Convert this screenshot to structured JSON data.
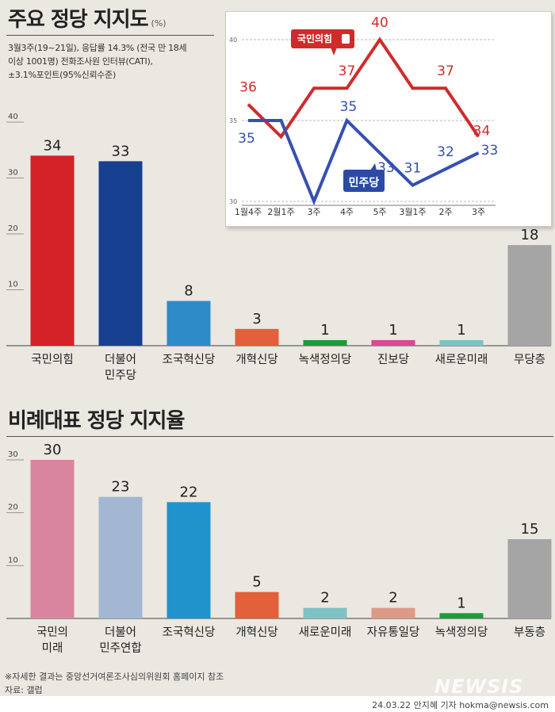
{
  "title1": "주요 정당 지지도",
  "title1_unit": "(%)",
  "notes": [
    "3월3주(19~21일), 응답률 14.3%  (전국 만 18세",
    "이상 1001명) 전화조사원 인터뷰(CATI),",
    "±3.1%포인트(95%신뢰수준)"
  ],
  "title2": "비례대표 정당 지지율",
  "footnote": "※자세한 결과는 중앙선거여론조사심의위원회 홈페이지 참조",
  "source": "자료: 갤럽",
  "byline": "24.03.22 안지혜 기자 hokma@newsis.com",
  "watermark": "NEWSIS",
  "colors": {
    "ppp": "#d02b2b",
    "dp": "#2b4aa6",
    "dpline": "#3550b0"
  },
  "chart_data": [
    {
      "type": "bar",
      "title": "주요 정당 지지도",
      "categories": [
        [
          "국민의힘"
        ],
        [
          "더불어",
          "민주당"
        ],
        [
          "조국혁신당"
        ],
        [
          "개혁신당"
        ],
        [
          "녹색정의당"
        ],
        [
          "진보당"
        ],
        [
          "새로운미래"
        ],
        [
          "무당층"
        ]
      ],
      "values": [
        34,
        33,
        8,
        3,
        1,
        1,
        1,
        18
      ],
      "colors": [
        "#d42127",
        "#173f8f",
        "#2e8bc8",
        "#e2603a",
        "#1e9a3c",
        "#d94a95",
        "#7fc2c4",
        "#a5a5a5"
      ],
      "yticks": [
        10,
        20,
        30,
        40
      ],
      "ylim": [
        0,
        40
      ]
    },
    {
      "type": "line",
      "x": [
        "1월4주",
        "2월1주",
        "3주",
        "4주",
        "5주",
        "3월1주",
        "2주",
        "3주"
      ],
      "series": [
        {
          "name": "국민의힘",
          "values": [
            36,
            34,
            37,
            37,
            40,
            37,
            37,
            34
          ],
          "labels": [
            "36",
            "",
            "",
            "37",
            "40",
            "",
            "37",
            "34"
          ]
        },
        {
          "name": "민주당",
          "values": [
            35,
            35,
            30,
            35,
            33,
            31,
            32,
            33
          ],
          "labels": [
            "35",
            "",
            "",
            "35",
            "33",
            "31",
            "32",
            "33"
          ]
        }
      ],
      "yticks": [
        30,
        35,
        40
      ],
      "ylim": [
        30,
        40
      ]
    },
    {
      "type": "bar",
      "title": "비례대표 정당 지지율",
      "categories": [
        [
          "국민의",
          "미래"
        ],
        [
          "더불어",
          "민주연합"
        ],
        [
          "조국혁신당"
        ],
        [
          "개혁신당"
        ],
        [
          "새로운미래"
        ],
        [
          "자유통일당"
        ],
        [
          "녹색정의당"
        ],
        [
          "부동층"
        ]
      ],
      "values": [
        30,
        23,
        22,
        5,
        2,
        2,
        1,
        15
      ],
      "colors": [
        "#d9859f",
        "#a3b7d3",
        "#2193cc",
        "#e2603a",
        "#7fc2c4",
        "#dd9a86",
        "#1e9a3c",
        "#a5a5a5"
      ],
      "yticks": [
        10,
        20,
        30
      ],
      "ylim": [
        0,
        30
      ]
    }
  ]
}
